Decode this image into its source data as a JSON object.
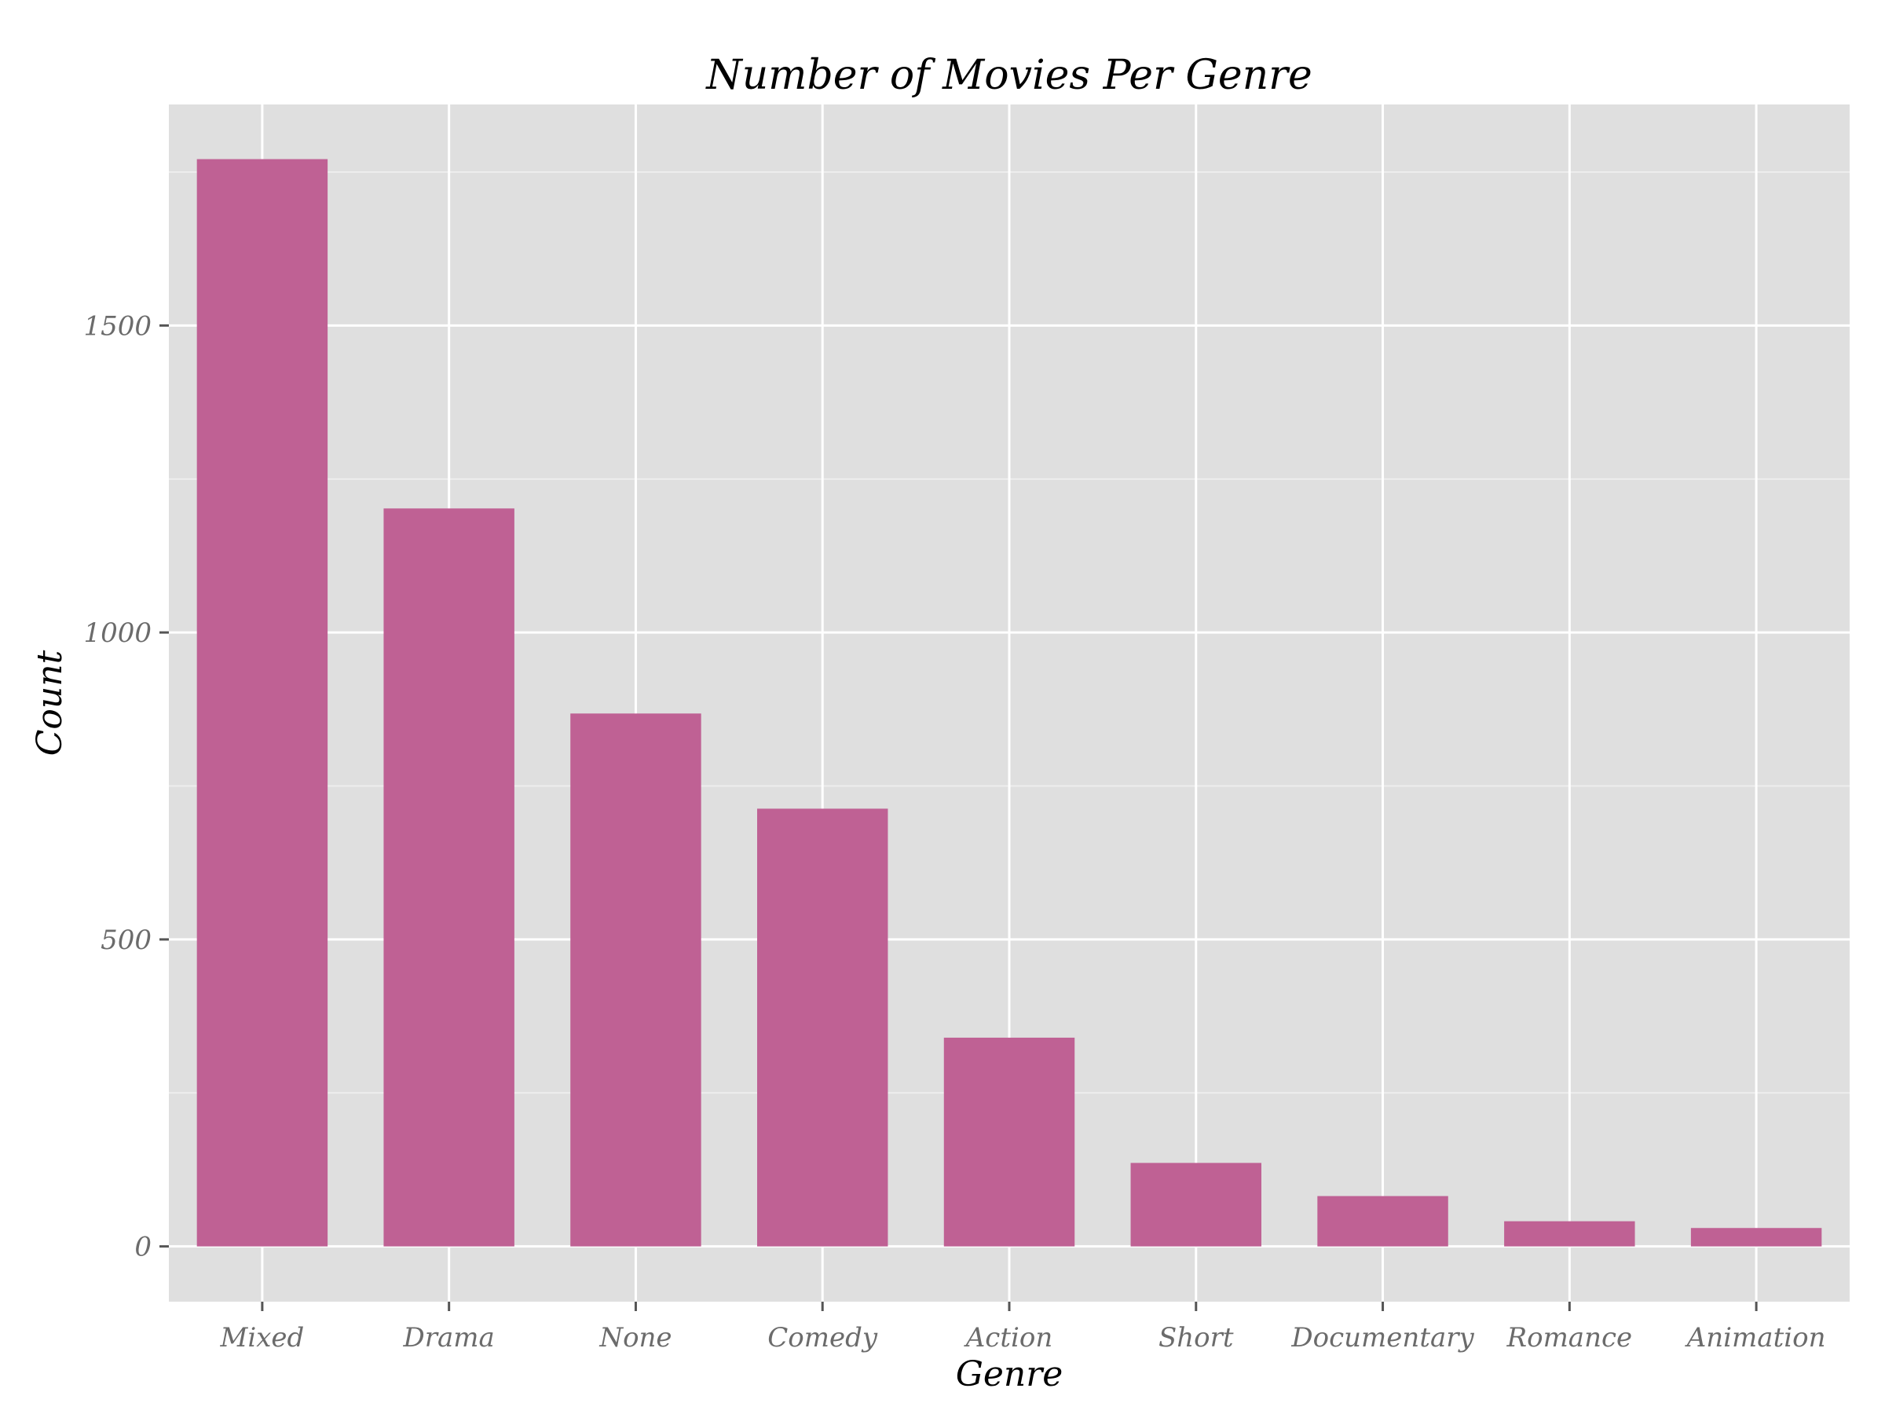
{
  "chart_data": {
    "type": "bar",
    "title": "Number of Movies Per Genre",
    "xlabel": "Genre",
    "ylabel": "Count",
    "categories": [
      "Mixed",
      "Drama",
      "None",
      "Comedy",
      "Action",
      "Short",
      "Documentary",
      "Romance",
      "Animation"
    ],
    "values": [
      1771,
      1202,
      868,
      713,
      340,
      136,
      82,
      41,
      30
    ],
    "ylim": [
      -90,
      1860
    ],
    "yticks": [
      0,
      500,
      1000,
      1500
    ],
    "grid": true,
    "legend": "none",
    "colors": {
      "bar": "#BF6194",
      "panel": "#DFDFDF",
      "grid_major": "#FFFFFF",
      "grid_minor": "#EDEDED",
      "tick_label": "#6B6B6B",
      "text": "#000000"
    }
  }
}
